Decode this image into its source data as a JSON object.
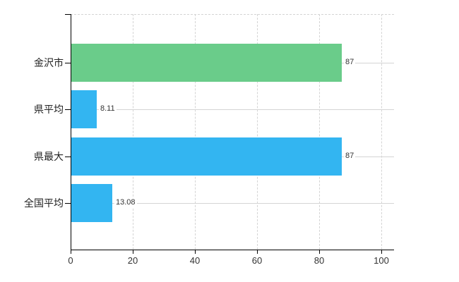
{
  "chart": {
    "background_color": "#ffffff",
    "axis_color": "#000000",
    "grid_color": "#d4d4d4",
    "category_label_color": "#222222",
    "value_label_color": "#333333"
  },
  "chart_data": {
    "type": "bar",
    "orientation": "horizontal",
    "title": "",
    "xlabel": "",
    "ylabel": "",
    "categories": [
      "金沢市",
      "県平均",
      "県最大",
      "全国平均"
    ],
    "values": [
      87,
      8.11,
      87,
      13.08
    ],
    "value_labels": [
      "87",
      "8.11",
      "87",
      "13.08"
    ],
    "bar_colors": [
      "#6acc8a",
      "#33b5f1",
      "#33b5f1",
      "#33b5f1"
    ],
    "x_ticks": [
      "0",
      "20",
      "40",
      "60",
      "80",
      "100"
    ],
    "x_tick_values": [
      0,
      20,
      40,
      60,
      80,
      100
    ],
    "xlim": [
      0,
      104
    ],
    "grid_vertical": "dashed",
    "grid_horizontal": "solid",
    "legend_position": "none"
  }
}
